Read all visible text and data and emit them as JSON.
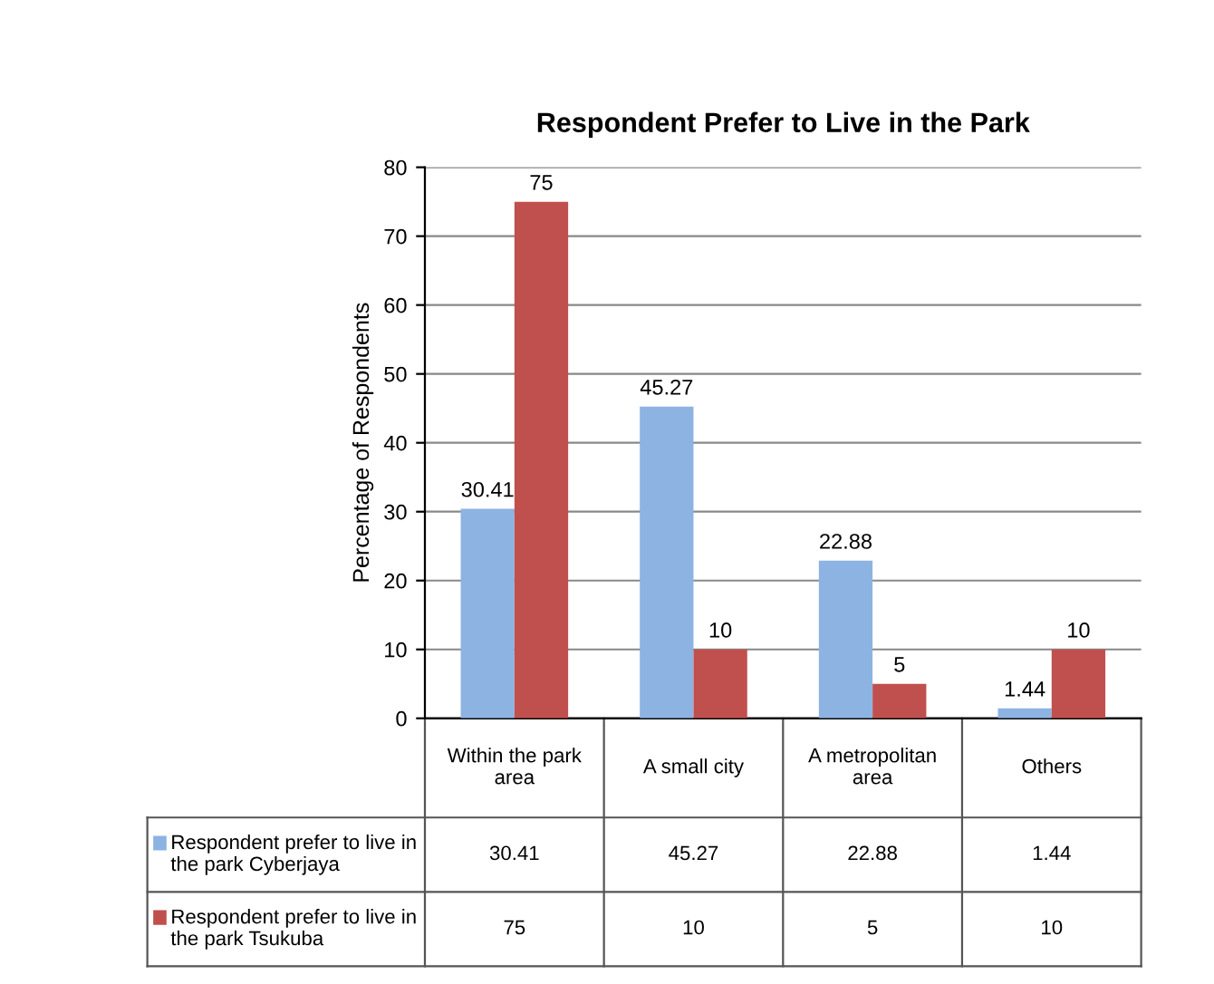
{
  "chart_data": {
    "type": "bar",
    "title": "Respondent Prefer to Live in the Park",
    "ylabel": "Percentage of Respondents",
    "categories": [
      "Within the park area",
      "A small city",
      "A metropolitan area",
      "Others"
    ],
    "series": [
      {
        "name": "Respondent prefer to live in the park Cyberjaya",
        "color": "#8db3e2",
        "values": [
          30.41,
          45.27,
          22.88,
          1.44
        ]
      },
      {
        "name": "Respondent prefer to live in the park Tsukuba",
        "color": "#c0504d",
        "values": [
          75,
          10,
          5,
          10
        ]
      }
    ],
    "ylim": [
      0,
      80
    ],
    "yticks": [
      0,
      10,
      20,
      30,
      40,
      50,
      60,
      70,
      80
    ],
    "grid": "y",
    "legend": "bottom left",
    "data_labels": true,
    "annotations": [
      "30.41",
      "45.27",
      "22.88",
      "1.44",
      "75",
      "10",
      "5",
      "10"
    ]
  }
}
